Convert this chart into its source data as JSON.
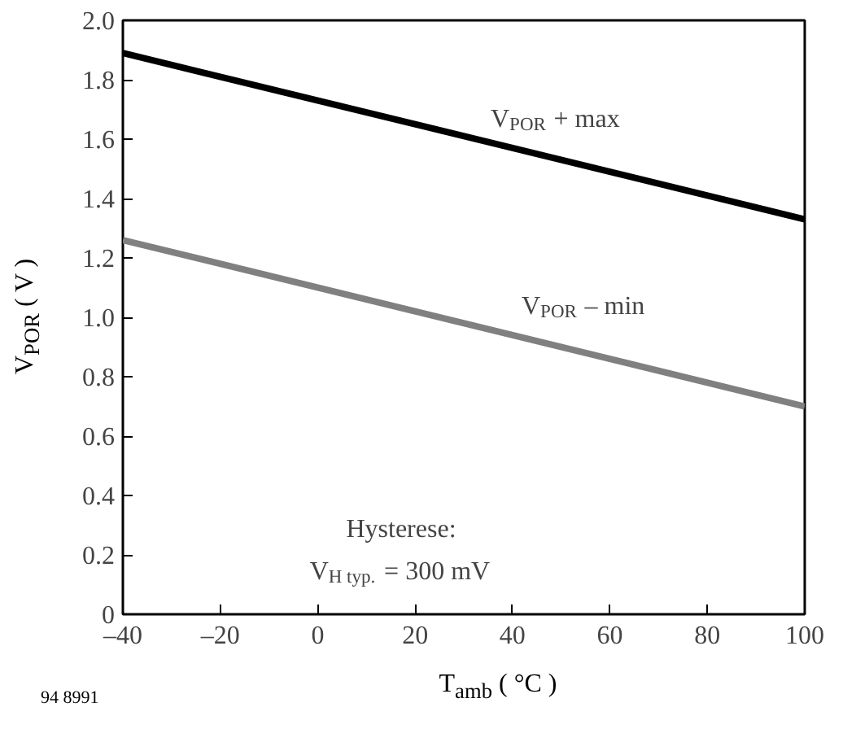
{
  "chart_data": {
    "type": "line",
    "xlabel": "T$_{amb}$ ( °C )",
    "ylabel": "V$_{POR}$ ( V )",
    "x": [
      -40,
      100
    ],
    "series": [
      {
        "color": "#000000",
        "values": [
          1.89,
          1.33
        ]
      },
      {
        "color": "#808080",
        "values": [
          1.26,
          0.7
        ]
      }
    ],
    "xlim": [
      -40,
      100
    ],
    "xticks": [
      {
        "value": -40,
        "label": "–40"
      },
      {
        "value": -20,
        "label": "–20"
      },
      0,
      20,
      40,
      60,
      80,
      100
    ],
    "ylim": [
      0,
      2
    ],
    "yticks": [
      0,
      0.2,
      0.4,
      0.6,
      0.8,
      {
        "value": 1,
        "label": "1.0"
      },
      1.2,
      1.4,
      1.6,
      1.8,
      {
        "value": 2,
        "label": "2.0"
      }
    ],
    "grid": false,
    "marker": "none",
    "line_style": "solid",
    "annotations": [
      "V$_{POR}$ + max",
      "V$_{POR}$ – min",
      "Hysterese:\nV$_{H typ.}$ = 300 mV",
      "94 8991"
    ]
  }
}
